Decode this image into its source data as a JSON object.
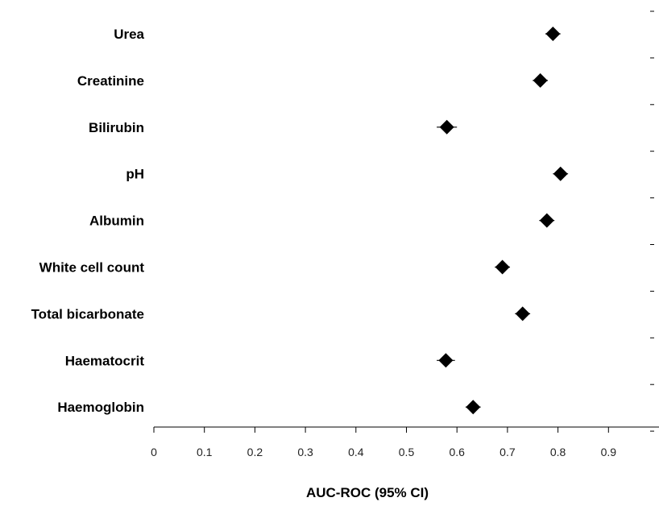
{
  "chart_data": {
    "type": "scatter",
    "xlabel": "AUC-ROC (95% CI)",
    "xlim": [
      0,
      1
    ],
    "x_ticks": [
      "0",
      "0.1",
      "0.2",
      "0.3",
      "0.4",
      "0.5",
      "0.6",
      "0.7",
      "0.8",
      "0.9"
    ],
    "categories": [
      "Urea",
      "Creatinine",
      "Bilirubin",
      "pH",
      "Albumin",
      "White cell count",
      "Total bicarbonate",
      "Haematocrit",
      "Haemoglobin"
    ],
    "values": [
      0.79,
      0.765,
      0.58,
      0.805,
      0.778,
      0.69,
      0.73,
      0.578,
      0.632
    ],
    "ci_lower": [
      0.775,
      0.75,
      0.56,
      0.79,
      0.763,
      0.675,
      0.715,
      0.56,
      0.617
    ],
    "ci_upper": [
      0.805,
      0.78,
      0.6,
      0.82,
      0.793,
      0.705,
      0.745,
      0.596,
      0.647
    ],
    "marker": "diamond",
    "marker_color": "#000000",
    "grid": false,
    "legend": "none"
  }
}
